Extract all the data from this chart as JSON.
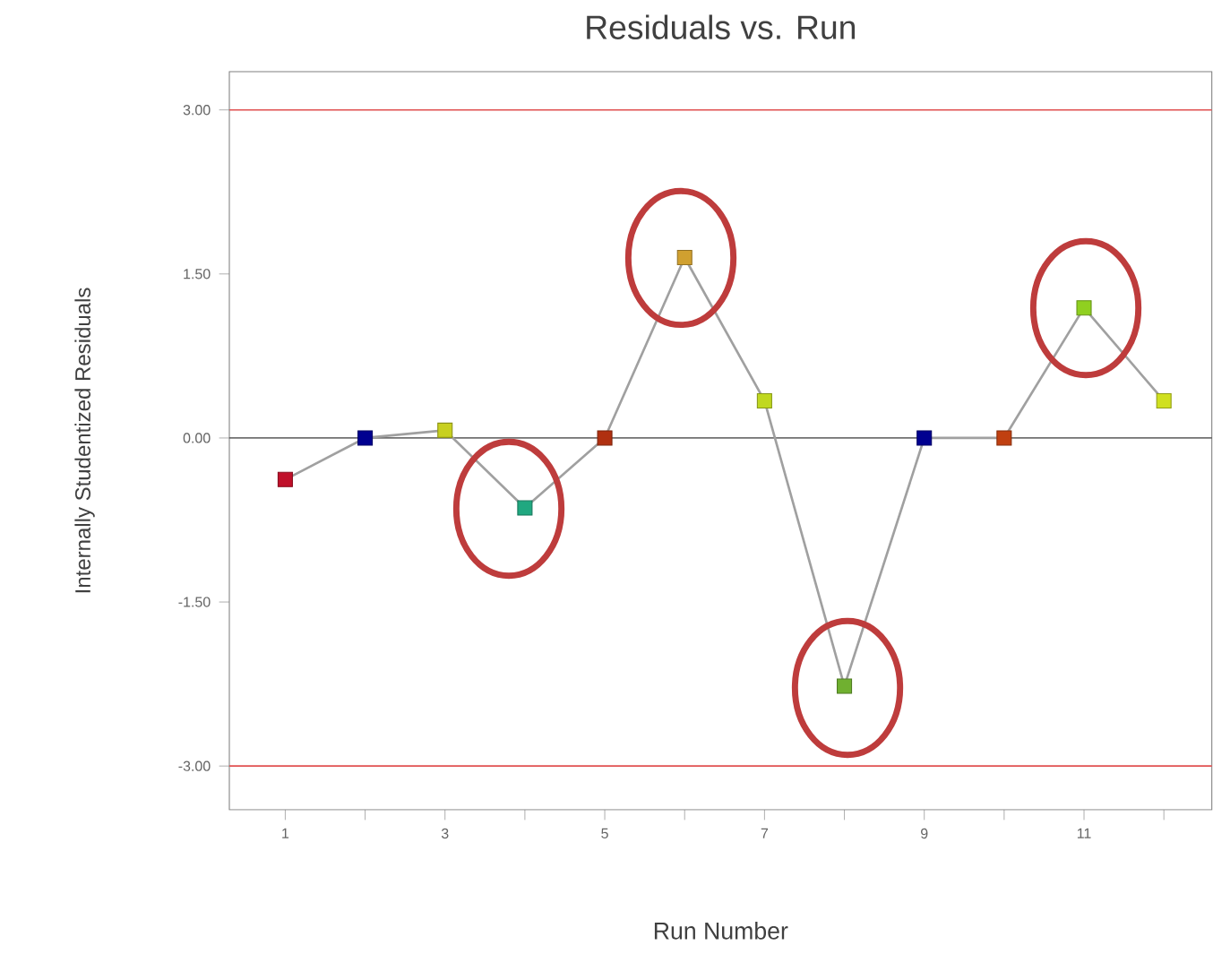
{
  "chart_data": {
    "type": "line",
    "title": "Residuals vs. Run",
    "xlabel": "Run Number",
    "ylabel": "Internally Studentized Residuals",
    "x": [
      1,
      2,
      3,
      4,
      5,
      6,
      7,
      8,
      9,
      10,
      11,
      12
    ],
    "series": [
      {
        "color": "#a0a0a0",
        "colors": [
          "#c0102a",
          "#000090",
          "#c8d020",
          "#20a880",
          "#b03010",
          "#d0a030",
          "#c0d820",
          "#70b030",
          "#000090",
          "#c04010",
          "#90d020",
          "#d0e020"
        ],
        "values": [
          -0.38,
          0,
          0.07,
          -0.64,
          0,
          1.65,
          0.34,
          -2.27,
          0,
          0,
          1.19,
          0.34
        ]
      }
    ],
    "marker": "square",
    "line_style": "solid",
    "xlim": [
      0.3,
      12.6
    ],
    "ylim": [
      -3.4,
      3.35
    ],
    "xticks": [
      1,
      {
        "value": 2,
        "label": null
      },
      3,
      {
        "value": 4,
        "label": null
      },
      5,
      {
        "value": 6,
        "label": null
      },
      7,
      {
        "value": 8,
        "label": null
      },
      9,
      {
        "value": 10,
        "label": null
      },
      11,
      {
        "value": 12,
        "label": null
      }
    ],
    "yticks": [
      {
        "value": -3,
        "label": "-3.00"
      },
      {
        "value": -1.5,
        "label": "-1.50"
      },
      {
        "value": 0,
        "label": "0.00"
      },
      {
        "value": 1.5,
        "label": "1.50"
      },
      {
        "value": 3,
        "label": "3.00"
      }
    ],
    "ref_lines": [
      {
        "axis": "y",
        "value": 3,
        "color": "#e05050"
      },
      {
        "axis": "y",
        "value": 0,
        "color": "#404040"
      },
      {
        "axis": "y",
        "value": -3,
        "color": "#e05050"
      }
    ]
  }
}
